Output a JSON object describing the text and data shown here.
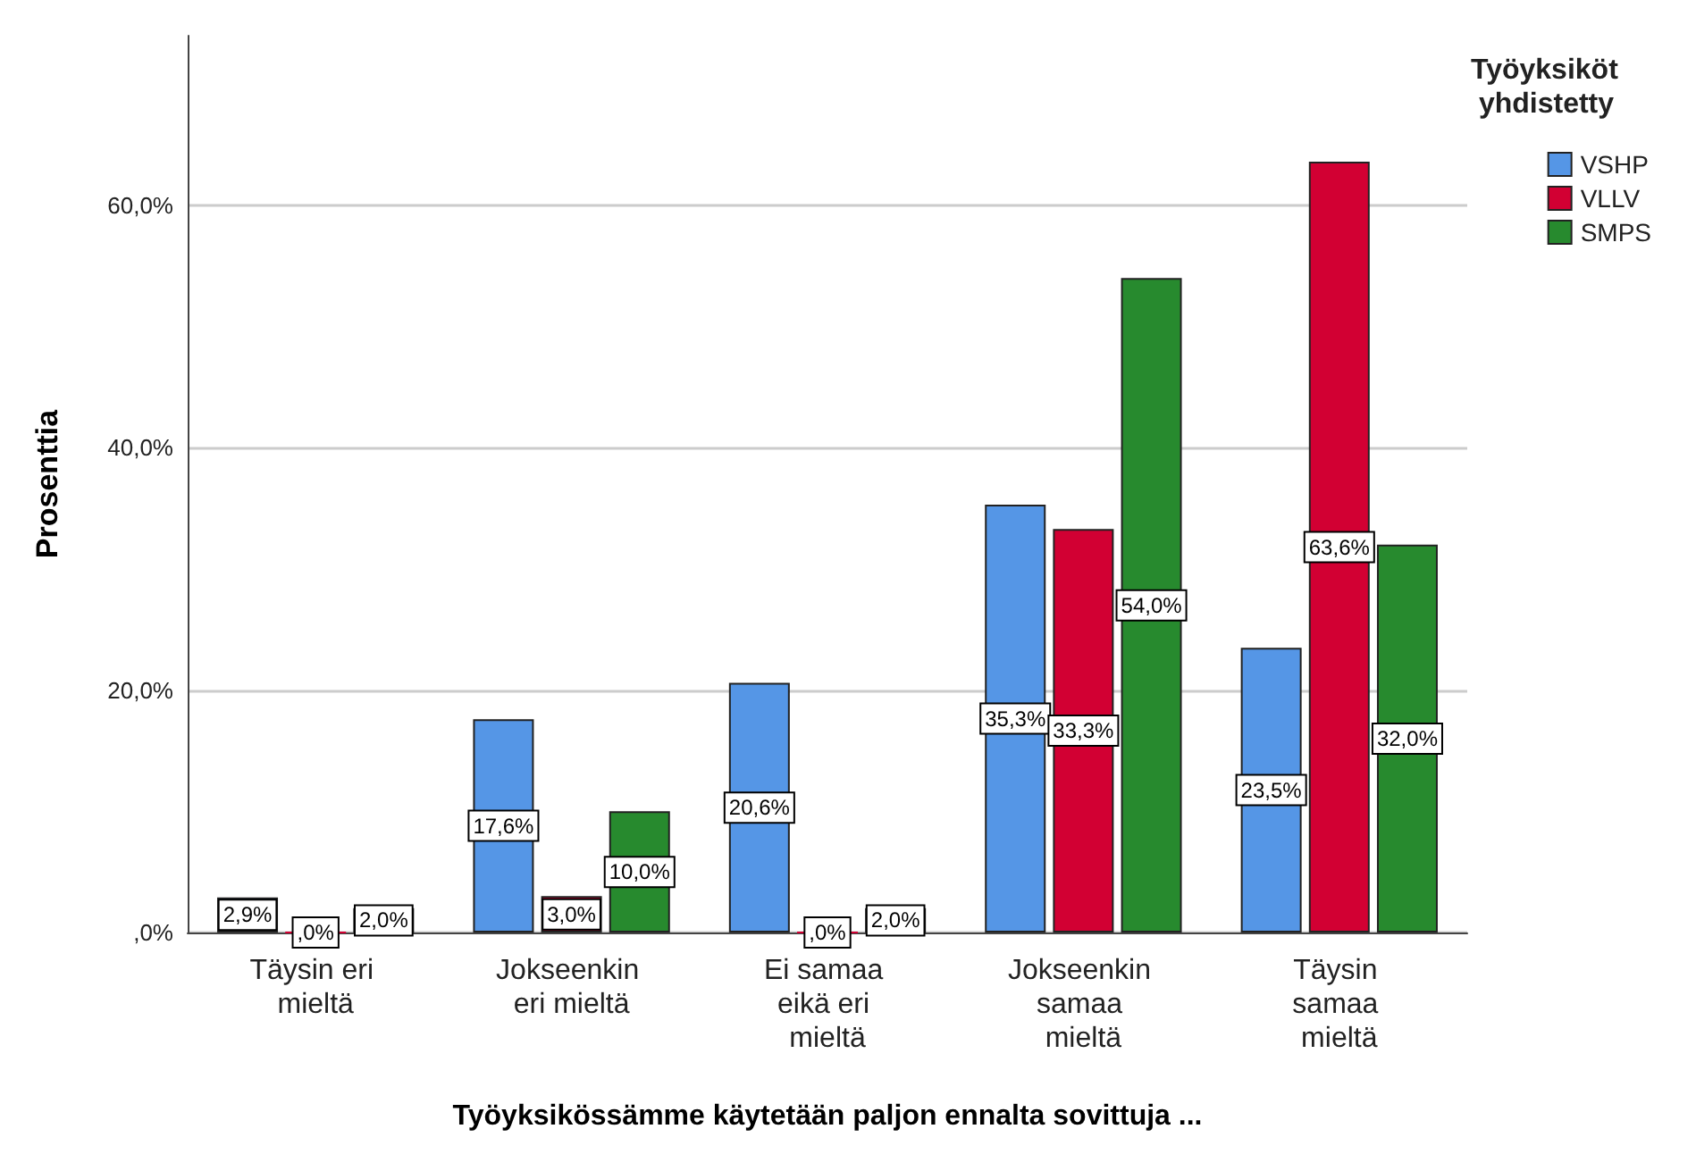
{
  "chart_data": {
    "type": "bar",
    "xlabel": "Työyksikössämme käytetään paljon ennalta sovittuja ...",
    "ylabel": "Prosenttia",
    "legend_title": "Työyksiköt yhdistetty",
    "legend": "top right",
    "grid": "y",
    "categories": [
      "Täysin eri mieltä",
      "Jokseenkin eri mieltä",
      "Ei samaa eikä eri mieltä",
      "Jokseenkin samaa mieltä",
      "Täysin samaa mieltä"
    ],
    "ylim": [
      0,
      74
    ],
    "yticks": [
      {
        "value": 0,
        "label": ",0%"
      },
      {
        "value": 20,
        "label": "20,0%"
      },
      {
        "value": 40,
        "label": "40,0%"
      },
      {
        "value": 60,
        "label": "60,0%"
      }
    ],
    "series": [
      {
        "name": "VSHP",
        "color": "#5596e6",
        "values": [
          2.9,
          17.6,
          20.6,
          35.3,
          23.5
        ],
        "value_labels": [
          "2,9%",
          "17,6%",
          "20,6%",
          "35,3%",
          "23,5%"
        ]
      },
      {
        "name": "VLLV",
        "color": "#d20033",
        "values": [
          0,
          3.0,
          0,
          33.3,
          63.6
        ],
        "value_labels": [
          ",0%",
          "3,0%",
          ",0%",
          "33,3%",
          "63,6%"
        ]
      },
      {
        "name": "SMPS",
        "color": "#278a2e",
        "values": [
          2.0,
          10.0,
          2.0,
          54.0,
          32.0
        ],
        "value_labels": [
          "2,0%",
          "10,0%",
          "2,0%",
          "54,0%",
          "32,0%"
        ]
      }
    ]
  }
}
